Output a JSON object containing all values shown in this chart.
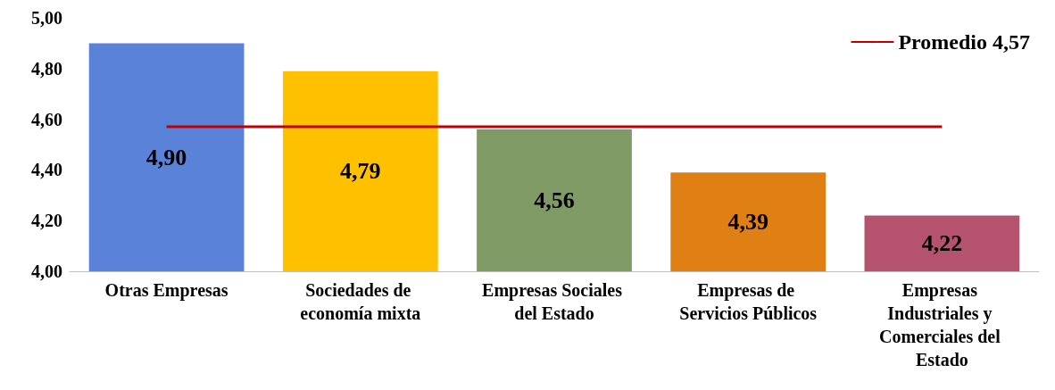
{
  "chart_data": {
    "type": "bar",
    "categories": [
      "Otras Empresas",
      "Sociedades de economía mixta",
      "Empresas Sociales del Estado",
      "Empresas de Servicios Públicos",
      "Empresas Industriales y Comerciales del Estado"
    ],
    "series": [
      {
        "type": "bar",
        "colors": [
          "#5b82d9",
          "#ffc000",
          "#7f9a65",
          "#e07f14",
          "#b5536f"
        ],
        "values": [
          4.9,
          4.79,
          4.56,
          4.39,
          4.22
        ],
        "value_labels": [
          "4,90",
          "4,79",
          "4,56",
          "4,39",
          "4,22"
        ]
      },
      {
        "type": "line",
        "name": "Promedio 4,57",
        "color": "#c00000",
        "values": [
          4.57,
          4.57,
          4.57,
          4.57,
          4.57
        ]
      }
    ],
    "ylim": [
      4.0,
      5.0
    ],
    "yticks": [
      {
        "value": 4.0,
        "label": "4,00"
      },
      {
        "value": 4.2,
        "label": "4,20"
      },
      {
        "value": 4.4,
        "label": "4,40"
      },
      {
        "value": 4.6,
        "label": "4,60"
      },
      {
        "value": 4.8,
        "label": "4,80"
      },
      {
        "value": 5.0,
        "label": "5,00"
      }
    ],
    "grid": false,
    "legend": "top right",
    "marker": "none"
  }
}
